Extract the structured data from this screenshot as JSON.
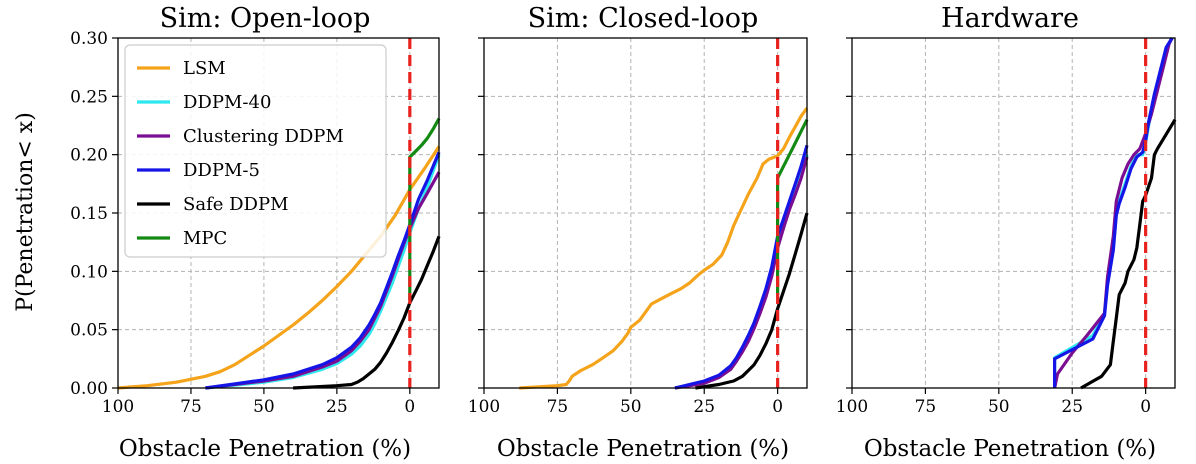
{
  "figure": {
    "ylabel": "P(Penetration< x)"
  },
  "legend_panel": "Sim: Open-loop",
  "series_styles": [
    {
      "name": "LSM",
      "color": "#f5a31a"
    },
    {
      "name": "DDPM-40",
      "color": "#2ee8f0"
    },
    {
      "name": "Clustering DDPM",
      "color": "#7b0d93"
    },
    {
      "name": "DDPM-5",
      "color": "#1515e6"
    },
    {
      "name": "Safe DDPM",
      "color": "#000000"
    },
    {
      "name": "MPC",
      "color": "#138a13"
    }
  ],
  "threshold": {
    "x": 0,
    "color": "#e8221e",
    "style": "dashed"
  },
  "chart_data": [
    {
      "type": "line",
      "title": "Sim: Open-loop",
      "xlabel": "Obstacle Penetration (%)",
      "ylabel": "P(Penetration< x)",
      "xlim": [
        100,
        -10
      ],
      "ylim": [
        0,
        0.3
      ],
      "x_ticks": [
        "100",
        "75",
        "50",
        "25",
        "0"
      ],
      "y_ticks": [
        "0.00",
        "0.05",
        "0.10",
        "0.15",
        "0.20",
        "0.25",
        "0.30"
      ],
      "grid": true,
      "legend": "top-left",
      "series": [
        {
          "name": "LSM",
          "x": [
            100,
            90,
            80,
            70,
            65,
            60,
            55,
            50,
            45,
            40,
            35,
            30,
            25,
            20,
            15,
            10,
            5,
            0,
            -5,
            -10
          ],
          "y": [
            0.0,
            0.002,
            0.005,
            0.01,
            0.014,
            0.02,
            0.028,
            0.036,
            0.045,
            0.054,
            0.064,
            0.075,
            0.087,
            0.1,
            0.115,
            0.13,
            0.148,
            0.17,
            0.188,
            0.207
          ]
        },
        {
          "name": "DDPM-40",
          "x": [
            70,
            50,
            40,
            30,
            25,
            20,
            17,
            14,
            12,
            10,
            8,
            6,
            4,
            2,
            0,
            -3,
            -6,
            -10
          ],
          "y": [
            0.0,
            0.005,
            0.009,
            0.016,
            0.021,
            0.029,
            0.036,
            0.046,
            0.055,
            0.066,
            0.078,
            0.09,
            0.104,
            0.118,
            0.133,
            0.154,
            0.172,
            0.2
          ]
        },
        {
          "name": "Clustering DDPM",
          "x": [
            70,
            50,
            40,
            30,
            25,
            20,
            17,
            14,
            12,
            10,
            8,
            6,
            4,
            2,
            0,
            -3,
            -6,
            -10
          ],
          "y": [
            0.0,
            0.006,
            0.01,
            0.018,
            0.023,
            0.032,
            0.04,
            0.05,
            0.06,
            0.07,
            0.083,
            0.096,
            0.11,
            0.124,
            0.137,
            0.154,
            0.167,
            0.185
          ]
        },
        {
          "name": "DDPM-5",
          "x": [
            70,
            50,
            40,
            30,
            25,
            20,
            17,
            14,
            12,
            10,
            8,
            6,
            4,
            2,
            0,
            -3,
            -6,
            -10
          ],
          "y": [
            0.0,
            0.007,
            0.012,
            0.02,
            0.026,
            0.035,
            0.043,
            0.054,
            0.063,
            0.073,
            0.086,
            0.099,
            0.113,
            0.126,
            0.14,
            0.162,
            0.178,
            0.202
          ]
        },
        {
          "name": "Safe DDPM",
          "x": [
            40,
            25,
            20,
            18,
            16,
            14,
            12,
            10,
            8,
            6,
            4,
            2,
            0,
            -2,
            -4,
            -6,
            -8,
            -10
          ],
          "y": [
            0.0,
            0.002,
            0.003,
            0.005,
            0.008,
            0.012,
            0.016,
            0.022,
            0.03,
            0.039,
            0.049,
            0.06,
            0.073,
            0.083,
            0.093,
            0.105,
            0.117,
            0.13
          ]
        },
        {
          "name": "MPC",
          "x": [
            0,
            0,
            -2,
            -4,
            -6,
            -8,
            -10
          ],
          "y": [
            0.075,
            0.198,
            0.203,
            0.208,
            0.214,
            0.222,
            0.231
          ]
        }
      ]
    },
    {
      "type": "line",
      "title": "Sim: Closed-loop",
      "xlabel": "Obstacle Penetration (%)",
      "xlim": [
        100,
        -10
      ],
      "ylim": [
        0,
        0.3
      ],
      "x_ticks": [
        "100",
        "75",
        "50",
        "25",
        "0"
      ],
      "grid": true,
      "series": [
        {
          "name": "LSM",
          "x": [
            88,
            75,
            72,
            71,
            70,
            67,
            63,
            60,
            56,
            53,
            51,
            50,
            47,
            45,
            43,
            40,
            37,
            33,
            30,
            27,
            25,
            22,
            19,
            17,
            15,
            13,
            10,
            7,
            5,
            3,
            1,
            0,
            -2,
            -4,
            -6,
            -8,
            -10
          ],
          "y": [
            0.0,
            0.002,
            0.003,
            0.006,
            0.01,
            0.015,
            0.02,
            0.025,
            0.032,
            0.04,
            0.047,
            0.052,
            0.058,
            0.065,
            0.072,
            0.076,
            0.08,
            0.085,
            0.09,
            0.097,
            0.101,
            0.106,
            0.114,
            0.125,
            0.139,
            0.15,
            0.166,
            0.18,
            0.192,
            0.196,
            0.198,
            0.199,
            0.205,
            0.215,
            0.224,
            0.233,
            0.24
          ]
        },
        {
          "name": "DDPM-40",
          "x": [
            35,
            25,
            20,
            16,
            14,
            12,
            10,
            8,
            6,
            4,
            2,
            0,
            -2,
            -4,
            -6,
            -8,
            -10
          ],
          "y": [
            0.0,
            0.005,
            0.01,
            0.018,
            0.025,
            0.033,
            0.042,
            0.053,
            0.066,
            0.08,
            0.098,
            0.125,
            0.14,
            0.155,
            0.168,
            0.182,
            0.2
          ]
        },
        {
          "name": "Clustering DDPM",
          "x": [
            35,
            25,
            20,
            16,
            14,
            12,
            10,
            8,
            6,
            4,
            2,
            0,
            -2,
            -4,
            -6,
            -8,
            -10
          ],
          "y": [
            0.0,
            0.004,
            0.009,
            0.016,
            0.023,
            0.031,
            0.04,
            0.051,
            0.064,
            0.078,
            0.096,
            0.12,
            0.137,
            0.153,
            0.166,
            0.18,
            0.198
          ]
        },
        {
          "name": "DDPM-5",
          "x": [
            35,
            25,
            20,
            16,
            14,
            12,
            10,
            8,
            6,
            4,
            2,
            0,
            -2,
            -4,
            -6,
            -8,
            -10
          ],
          "y": [
            0.0,
            0.006,
            0.011,
            0.019,
            0.026,
            0.035,
            0.045,
            0.056,
            0.07,
            0.085,
            0.104,
            0.13,
            0.145,
            0.16,
            0.175,
            0.19,
            0.208
          ]
        },
        {
          "name": "Safe DDPM",
          "x": [
            28,
            20,
            15,
            12,
            10,
            8,
            6,
            4,
            2,
            0,
            -2,
            -4,
            -6,
            -8,
            -10
          ],
          "y": [
            0.0,
            0.003,
            0.006,
            0.01,
            0.015,
            0.02,
            0.028,
            0.038,
            0.05,
            0.068,
            0.083,
            0.098,
            0.115,
            0.132,
            0.15
          ]
        },
        {
          "name": "MPC",
          "x": [
            0,
            0,
            -2,
            -4,
            -6,
            -8,
            -10
          ],
          "y": [
            0.08,
            0.18,
            0.19,
            0.2,
            0.21,
            0.22,
            0.23
          ]
        }
      ]
    },
    {
      "type": "line",
      "title": "Hardware",
      "xlabel": "Obstacle Penetration (%)",
      "xlim": [
        100,
        -10
      ],
      "ylim": [
        0,
        0.3
      ],
      "x_ticks": [
        "100",
        "75",
        "50",
        "25",
        "0"
      ],
      "grid": true,
      "series": [
        {
          "name": "DDPM-40",
          "x": [
            31,
            31,
            18,
            14,
            13,
            11,
            10,
            9,
            7,
            5,
            3,
            1,
            0,
            -1,
            -3,
            -5,
            -7,
            -9
          ],
          "y": [
            0.0,
            0.026,
            0.045,
            0.064,
            0.09,
            0.12,
            0.15,
            0.16,
            0.175,
            0.19,
            0.2,
            0.2,
            0.21,
            0.225,
            0.25,
            0.27,
            0.29,
            0.3
          ]
        },
        {
          "name": "Clustering DDPM",
          "x": [
            31,
            30,
            25,
            20,
            14,
            13,
            11,
            10,
            8,
            6,
            4,
            2,
            0,
            -2,
            -4,
            -6,
            -8,
            -9
          ],
          "y": [
            0.0,
            0.012,
            0.03,
            0.045,
            0.064,
            0.095,
            0.13,
            0.16,
            0.18,
            0.192,
            0.2,
            0.205,
            0.218,
            0.235,
            0.255,
            0.275,
            0.295,
            0.3
          ]
        },
        {
          "name": "DDPM-5",
          "x": [
            31,
            31,
            18,
            14,
            13,
            11,
            10,
            9,
            7,
            5,
            3,
            1,
            0,
            -1,
            -3,
            -5,
            -7,
            -9
          ],
          "y": [
            0.0,
            0.025,
            0.042,
            0.062,
            0.088,
            0.118,
            0.148,
            0.158,
            0.172,
            0.188,
            0.198,
            0.202,
            0.212,
            0.228,
            0.252,
            0.272,
            0.292,
            0.3
          ]
        },
        {
          "name": "Safe DDPM",
          "x": [
            22,
            15,
            12,
            11,
            10,
            9,
            7,
            6,
            4,
            3,
            2,
            1,
            0,
            -2,
            -3,
            -4,
            -10
          ],
          "y": [
            0.0,
            0.01,
            0.02,
            0.04,
            0.06,
            0.08,
            0.09,
            0.1,
            0.11,
            0.12,
            0.14,
            0.16,
            0.165,
            0.18,
            0.2,
            0.205,
            0.23
          ]
        }
      ]
    }
  ]
}
